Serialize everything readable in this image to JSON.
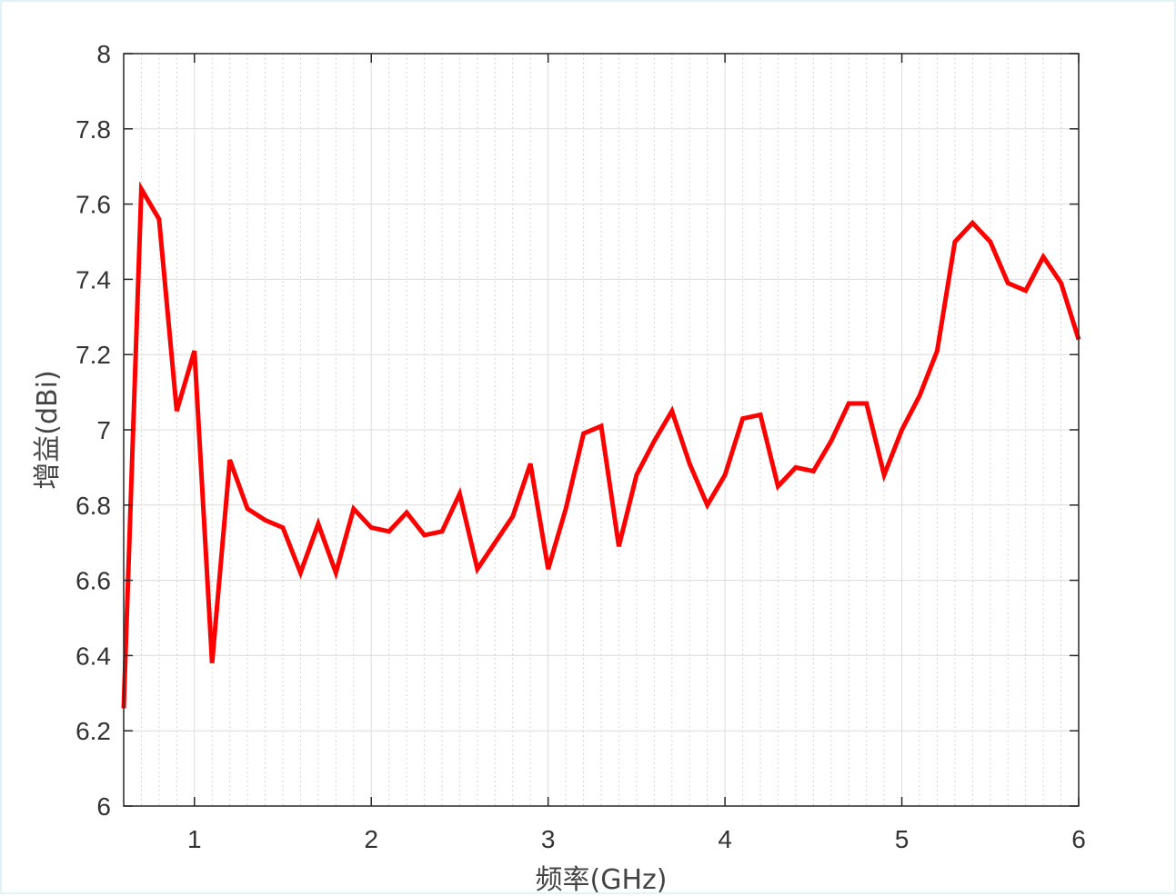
{
  "chart_data": {
    "type": "line",
    "xlabel": "频率(GHz)",
    "ylabel": "增益(dBi)",
    "xlim": [
      0.6,
      6
    ],
    "ylim": [
      6,
      8
    ],
    "x_ticks": [
      1,
      2,
      3,
      4,
      5,
      6
    ],
    "y_ticks": [
      6,
      6.2,
      6.4,
      6.6,
      6.8,
      7,
      7.2,
      7.4,
      7.6,
      7.8,
      8
    ],
    "y_tick_labels": [
      "6",
      "6.2",
      "6.4",
      "6.6",
      "6.8",
      "7",
      "7.2",
      "7.4",
      "7.6",
      "7.8",
      "8"
    ],
    "x_tick_labels": [
      "1",
      "2",
      "3",
      "4",
      "5",
      "6"
    ],
    "grid": true,
    "minor_grid": true,
    "series": [
      {
        "color": "#ff0000",
        "x": [
          0.6,
          0.7,
          0.8,
          0.9,
          1.0,
          1.1,
          1.2,
          1.3,
          1.4,
          1.5,
          1.6,
          1.7,
          1.8,
          1.9,
          2.0,
          2.1,
          2.2,
          2.3,
          2.4,
          2.5,
          2.6,
          2.7,
          2.8,
          2.9,
          3.0,
          3.1,
          3.2,
          3.3,
          3.4,
          3.5,
          3.6,
          3.7,
          3.8,
          3.9,
          4.0,
          4.1,
          4.2,
          4.3,
          4.4,
          4.5,
          4.6,
          4.7,
          4.8,
          4.9,
          5.0,
          5.1,
          5.2,
          5.3,
          5.4,
          5.5,
          5.6,
          5.7,
          5.8,
          5.9,
          6.0
        ],
        "y": [
          6.26,
          7.64,
          7.56,
          7.05,
          7.21,
          6.38,
          6.92,
          6.79,
          6.76,
          6.74,
          6.62,
          6.75,
          6.62,
          6.79,
          6.74,
          6.73,
          6.78,
          6.72,
          6.73,
          6.83,
          6.63,
          6.7,
          6.77,
          6.91,
          6.63,
          6.79,
          6.99,
          7.01,
          6.69,
          6.88,
          6.97,
          7.05,
          6.91,
          6.8,
          6.88,
          7.03,
          7.04,
          6.85,
          6.9,
          6.89,
          6.97,
          7.07,
          7.07,
          6.88,
          7.0,
          7.09,
          7.21,
          7.5,
          7.55,
          7.5,
          7.39,
          7.37,
          7.46,
          7.39,
          7.24
        ]
      }
    ]
  }
}
